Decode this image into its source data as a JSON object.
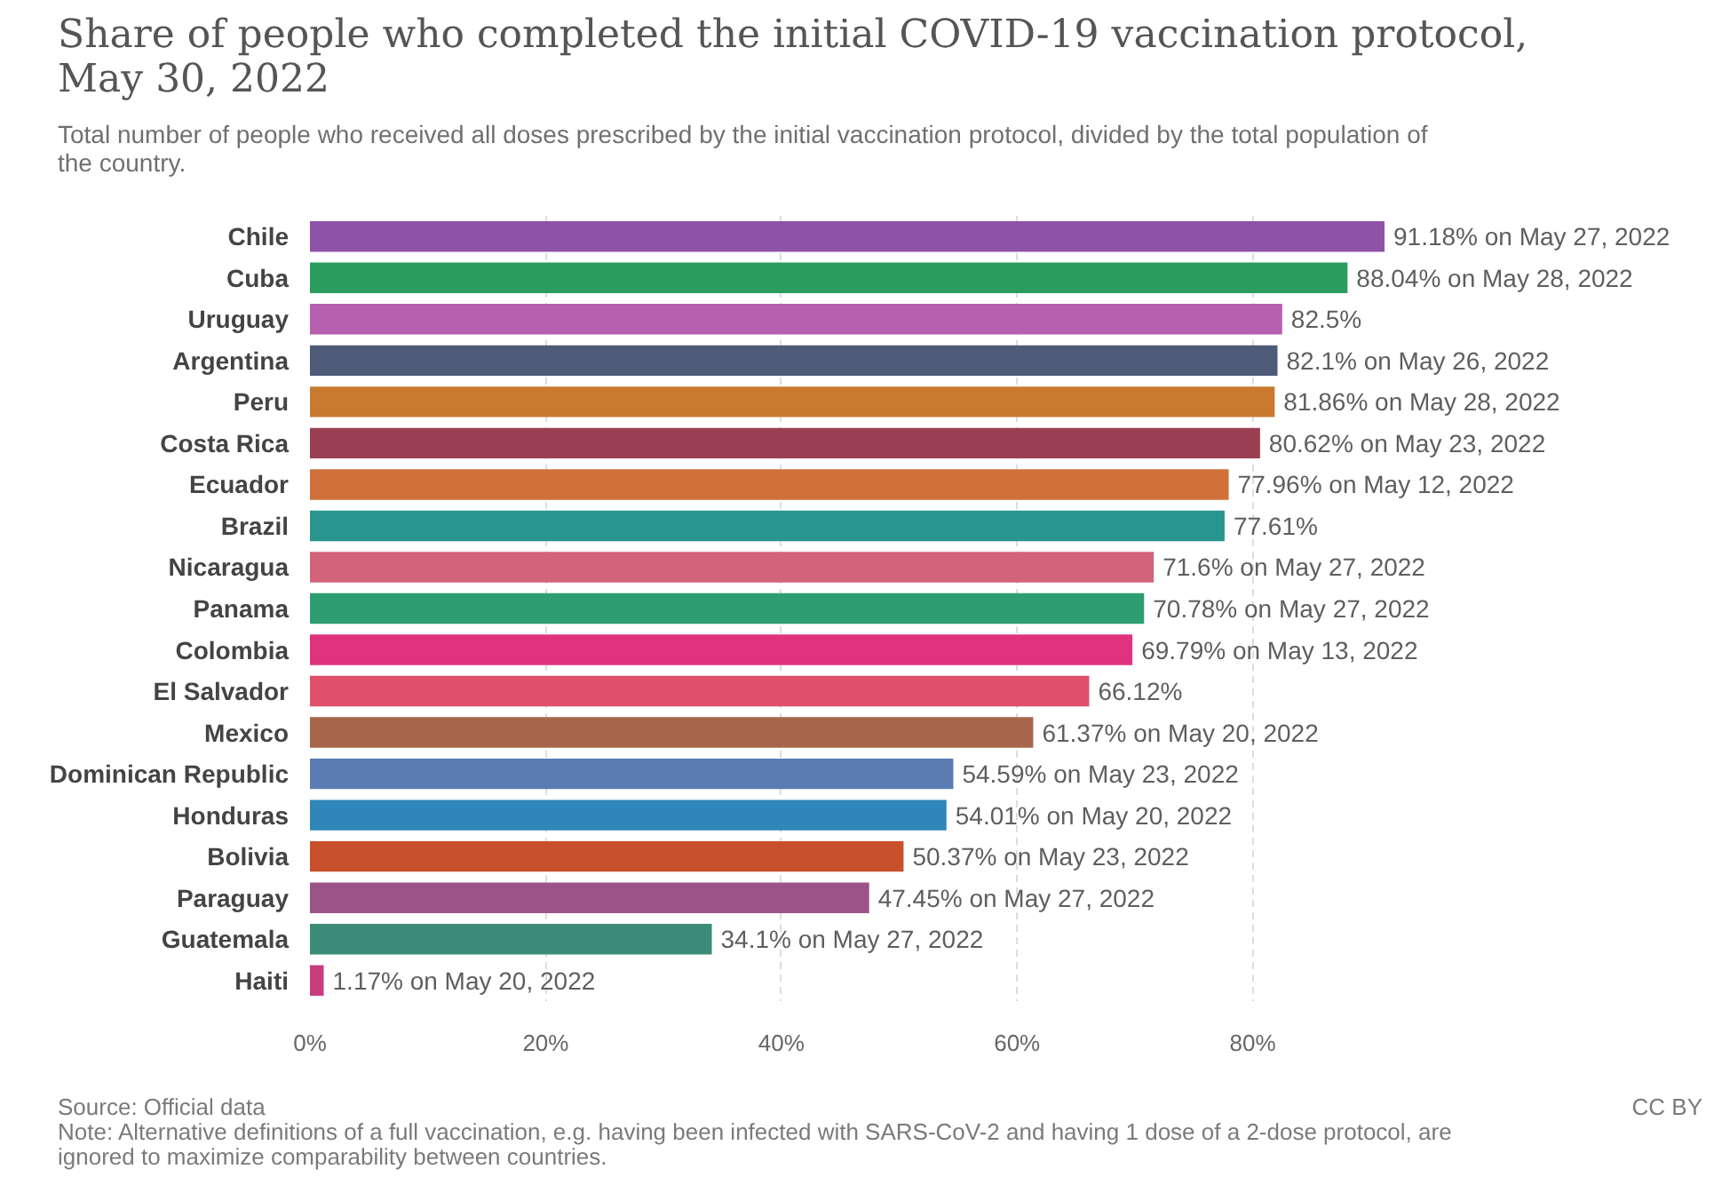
{
  "chart_data": {
    "type": "bar",
    "orientation": "horizontal",
    "title": "Share of people who completed the initial COVID-19 vaccination protocol, May 30, 2022",
    "subtitle": "Total number of people who received all doses prescribed by the initial vaccination protocol, divided by the total population of the country.",
    "categories": [
      "Chile",
      "Cuba",
      "Uruguay",
      "Argentina",
      "Peru",
      "Costa Rica",
      "Ecuador",
      "Brazil",
      "Nicaragua",
      "Panama",
      "Colombia",
      "El Salvador",
      "Mexico",
      "Dominican Republic",
      "Honduras",
      "Bolivia",
      "Paraguay",
      "Guatemala",
      "Haiti"
    ],
    "values": [
      91.18,
      88.04,
      82.5,
      82.1,
      81.86,
      80.62,
      77.96,
      77.61,
      71.6,
      70.78,
      69.79,
      66.12,
      61.37,
      54.59,
      54.01,
      50.37,
      47.45,
      34.1,
      1.17
    ],
    "colors": [
      "#8e52a8",
      "#2a9c5e",
      "#b660b0",
      "#4d5b78",
      "#c97a2e",
      "#9a3f52",
      "#d0703a",
      "#28968f",
      "#d3637a",
      "#2e9e70",
      "#e0337e",
      "#e0506a",
      "#a7664a",
      "#5a7cb3",
      "#2f86b8",
      "#c8502a",
      "#9b5488",
      "#3c8c78",
      "#c93d7e"
    ],
    "value_labels": [
      "91.18% on May 27, 2022",
      "88.04% on May 28, 2022",
      "82.5%",
      "82.1% on May 26, 2022",
      "81.86% on May 28, 2022",
      "80.62% on May 23, 2022",
      "77.96% on May 12, 2022",
      "77.61%",
      "71.6% on May 27, 2022",
      "70.78% on May 27, 2022",
      "69.79% on May 13, 2022",
      "66.12%",
      "61.37% on May 20, 2022",
      "54.59% on May 23, 2022",
      "54.01% on May 20, 2022",
      "50.37% on May 23, 2022",
      "47.45% on May 27, 2022",
      "34.1% on May 27, 2022",
      "1.17% on May 20, 2022"
    ],
    "xlim": [
      0,
      91.18
    ],
    "xticks": [
      {
        "value": 0,
        "label": "0%"
      },
      {
        "value": 20,
        "label": "20%"
      },
      {
        "value": 40,
        "label": "40%"
      },
      {
        "value": 60,
        "label": "60%"
      },
      {
        "value": 80,
        "label": "80%"
      }
    ],
    "grid": "x",
    "annotations": [
      "Source: Official data",
      "Note: Alternative definitions of a full vaccination, e.g. having been infected with SARS-CoV-2 and having 1 dose of a 2-dose protocol, are ignored to maximize comparability between countries.",
      "CC BY"
    ]
  }
}
